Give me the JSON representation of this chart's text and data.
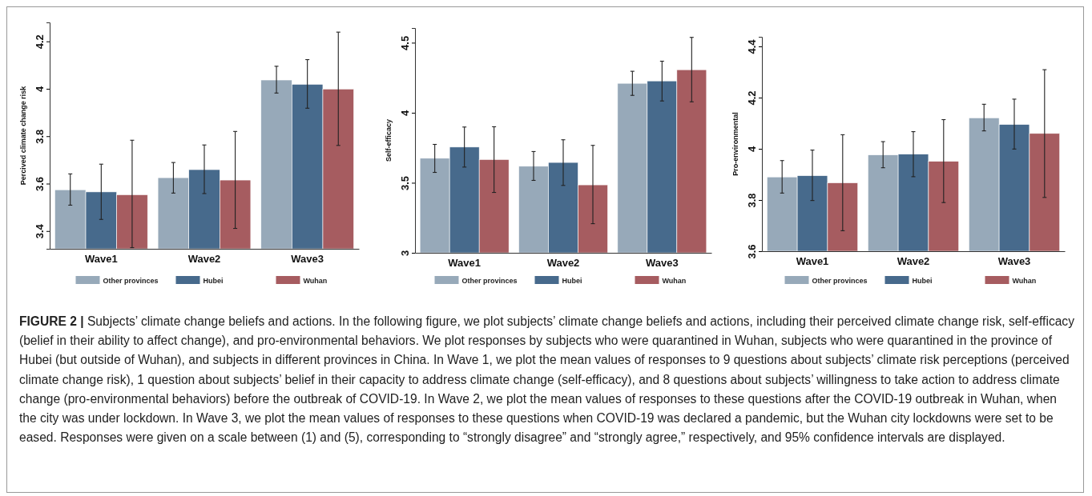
{
  "chart_data": [
    {
      "type": "bar",
      "ylabel": "Percived climate change risk",
      "categories": [
        "Wave1",
        "Wave2",
        "Wave3"
      ],
      "ylim": [
        3.325,
        4.28
      ],
      "yticks": [
        3.4,
        3.6,
        3.8,
        4,
        4.2
      ],
      "legend": "bottom",
      "grid": false,
      "series": [
        {
          "name": "Other provinces",
          "color": "#97a9b9",
          "values": [
            3.574,
            3.625,
            4.037
          ],
          "errors": [
            [
              3.509,
              3.641
            ],
            [
              3.56,
              3.689
            ],
            [
              3.982,
              4.095
            ]
          ]
        },
        {
          "name": "Hubei",
          "color": "#476a8c",
          "values": [
            3.565,
            3.659,
            4.019
          ],
          "errors": [
            [
              3.449,
              3.682
            ],
            [
              3.558,
              3.763
            ],
            [
              3.918,
              4.123
            ]
          ]
        },
        {
          "name": "Wuhan",
          "color": "#a65c60",
          "values": [
            3.553,
            3.615,
            3.999
          ],
          "errors": [
            [
              3.33,
              3.783
            ],
            [
              3.411,
              3.82
            ],
            [
              3.761,
              4.239
            ]
          ]
        }
      ],
      "annotations": [
        "FIGURE 2 |",
        "Subjects’ climate change beliefs and actions. In the following figure, we plot subjects’ climate change beliefs and actions, including their perceived climate change risk, self-efficacy (belief in their ability to affect change), and pro-environmental behaviors. We plot responses by subjects who were quarantined in Wuhan, subjects who were quarantined in the province of Hubei (but outside of Wuhan), and subjects in different provinces in China. In Wave 1, we plot the mean values of responses to 9 questions about subjects’ climate risk perceptions (perceived climate change risk), 1 question about subjects’ belief in their capacity to address climate change (self-efficacy), and 8 questions about subjects’ willingness to take action to address climate change (pro-environmental behaviors) before the outbreak of COVID-19. In Wave 2, we plot the mean values of responses to these questions after the COVID-19 outbreak in Wuhan, when the city was under lockdown. In Wave 3, we plot the mean values of responses to these questions when COVID-19 was declared a pandemic, but the Wuhan city lockdowns were set to be eased. Responses were given on a scale between (1) and (5), corresponding to “strongly disagree” and “strongly agree,” respectively, and 95% confidence intervals are displayed."
      ]
    },
    {
      "type": "bar",
      "ylabel": "Self-efficacy",
      "categories": [
        "Wave1",
        "Wave2",
        "Wave3"
      ],
      "ylim": [
        3,
        4.605
      ],
      "yticks": [
        3,
        3.5,
        4,
        4.5
      ],
      "legend": "bottom",
      "grid": false,
      "series": [
        {
          "name": "Other provinces",
          "color": "#97a9b9",
          "values": [
            3.675,
            3.618,
            4.21
          ],
          "errors": [
            [
              3.574,
              3.774
            ],
            [
              3.517,
              3.723
            ],
            [
              4.124,
              4.296
            ]
          ]
        },
        {
          "name": "Hubei",
          "color": "#476a8c",
          "values": [
            3.755,
            3.645,
            4.227
          ],
          "errors": [
            [
              3.612,
              3.898
            ],
            [
              3.481,
              3.807
            ],
            [
              4.084,
              4.368
            ]
          ]
        },
        {
          "name": "Wuhan",
          "color": "#a65c60",
          "values": [
            3.666,
            3.485,
            4.307
          ],
          "errors": [
            [
              3.431,
              3.9
            ],
            [
              3.208,
              3.767
            ],
            [
              4.078,
              4.538
            ]
          ]
        }
      ]
    },
    {
      "type": "bar",
      "ylabel": "Pro-environmental",
      "categories": [
        "Wave1",
        "Wave2",
        "Wave3"
      ],
      "ylim": [
        3.6,
        4.4375
      ],
      "yticks": [
        3.6,
        3.8,
        4,
        4.2,
        4.4
      ],
      "legend": "bottom",
      "grid": false,
      "series": [
        {
          "name": "Other provinces",
          "color": "#97a9b9",
          "values": [
            3.89,
            3.976,
            4.121
          ],
          "errors": [
            [
              3.827,
              3.954
            ],
            [
              3.926,
              4.028
            ],
            [
              4.07,
              4.174
            ]
          ]
        },
        {
          "name": "Hubei",
          "color": "#476a8c",
          "values": [
            3.895,
            3.979,
            4.095
          ],
          "errors": [
            [
              3.798,
              3.995
            ],
            [
              3.891,
              4.067
            ],
            [
              3.999,
              4.194
            ]
          ]
        },
        {
          "name": "Wuhan",
          "color": "#a65c60",
          "values": [
            3.867,
            3.951,
            4.06
          ],
          "errors": [
            [
              3.68,
              4.055
            ],
            [
              3.79,
              4.114
            ],
            [
              3.81,
              4.309
            ]
          ]
        }
      ]
    }
  ]
}
